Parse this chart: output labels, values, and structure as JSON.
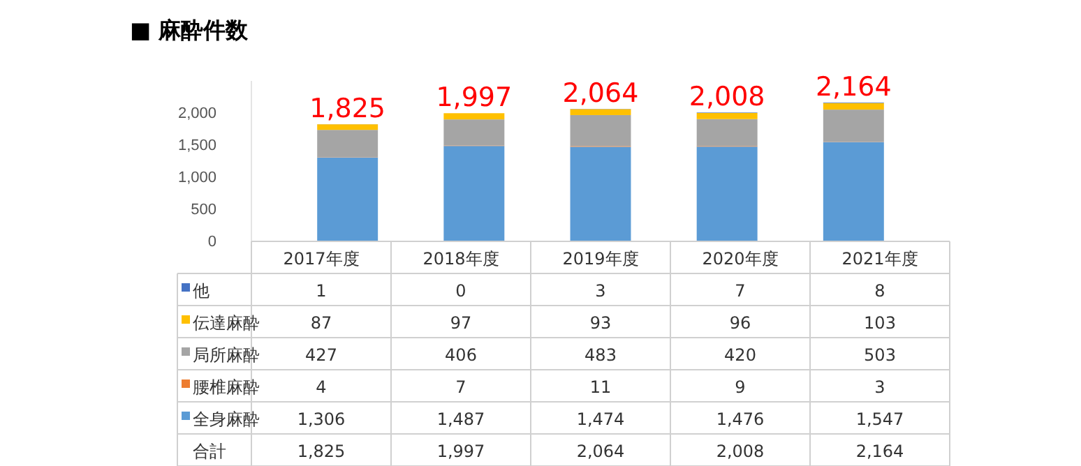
{
  "chart_data": {
    "type": "bar",
    "title": "■ 麻酔件数",
    "stacked": true,
    "ylim": [
      0,
      2500
    ],
    "yticks": [
      0,
      500,
      {
        "value": 1000,
        "label": "1,000"
      },
      {
        "value": 1500,
        "label": "1,500"
      },
      {
        "value": 2000,
        "label": "2,000"
      }
    ],
    "categories": [
      "2017年度",
      "2018年度",
      "2019年度",
      "2020年度",
      "2021年度"
    ],
    "series": [
      {
        "name": "全身麻酔",
        "color": "#5b9bd5",
        "values": [
          1306,
          1487,
          1474,
          1476,
          1547
        ],
        "value_labels": [
          "1,306",
          "1,487",
          "1,474",
          "1,476",
          "1,547"
        ]
      },
      {
        "name": "腰椎麻酔",
        "color": "#ed7d31",
        "values": [
          4,
          7,
          11,
          9,
          3
        ]
      },
      {
        "name": "局所麻酔",
        "color": "#a5a5a5",
        "values": [
          427,
          406,
          483,
          420,
          503
        ]
      },
      {
        "name": "伝達麻酔",
        "color": "#ffc000",
        "values": [
          87,
          97,
          93,
          96,
          103
        ]
      },
      {
        "name": "他",
        "color": "#4472c4",
        "values": [
          1,
          0,
          3,
          7,
          8
        ]
      }
    ],
    "totals": [
      "1,825",
      "1,997",
      "2,064",
      "2,008",
      "2,164"
    ],
    "annotations": [
      "合計"
    ],
    "data_labels": true,
    "legend": "bottom",
    "grid": false
  }
}
